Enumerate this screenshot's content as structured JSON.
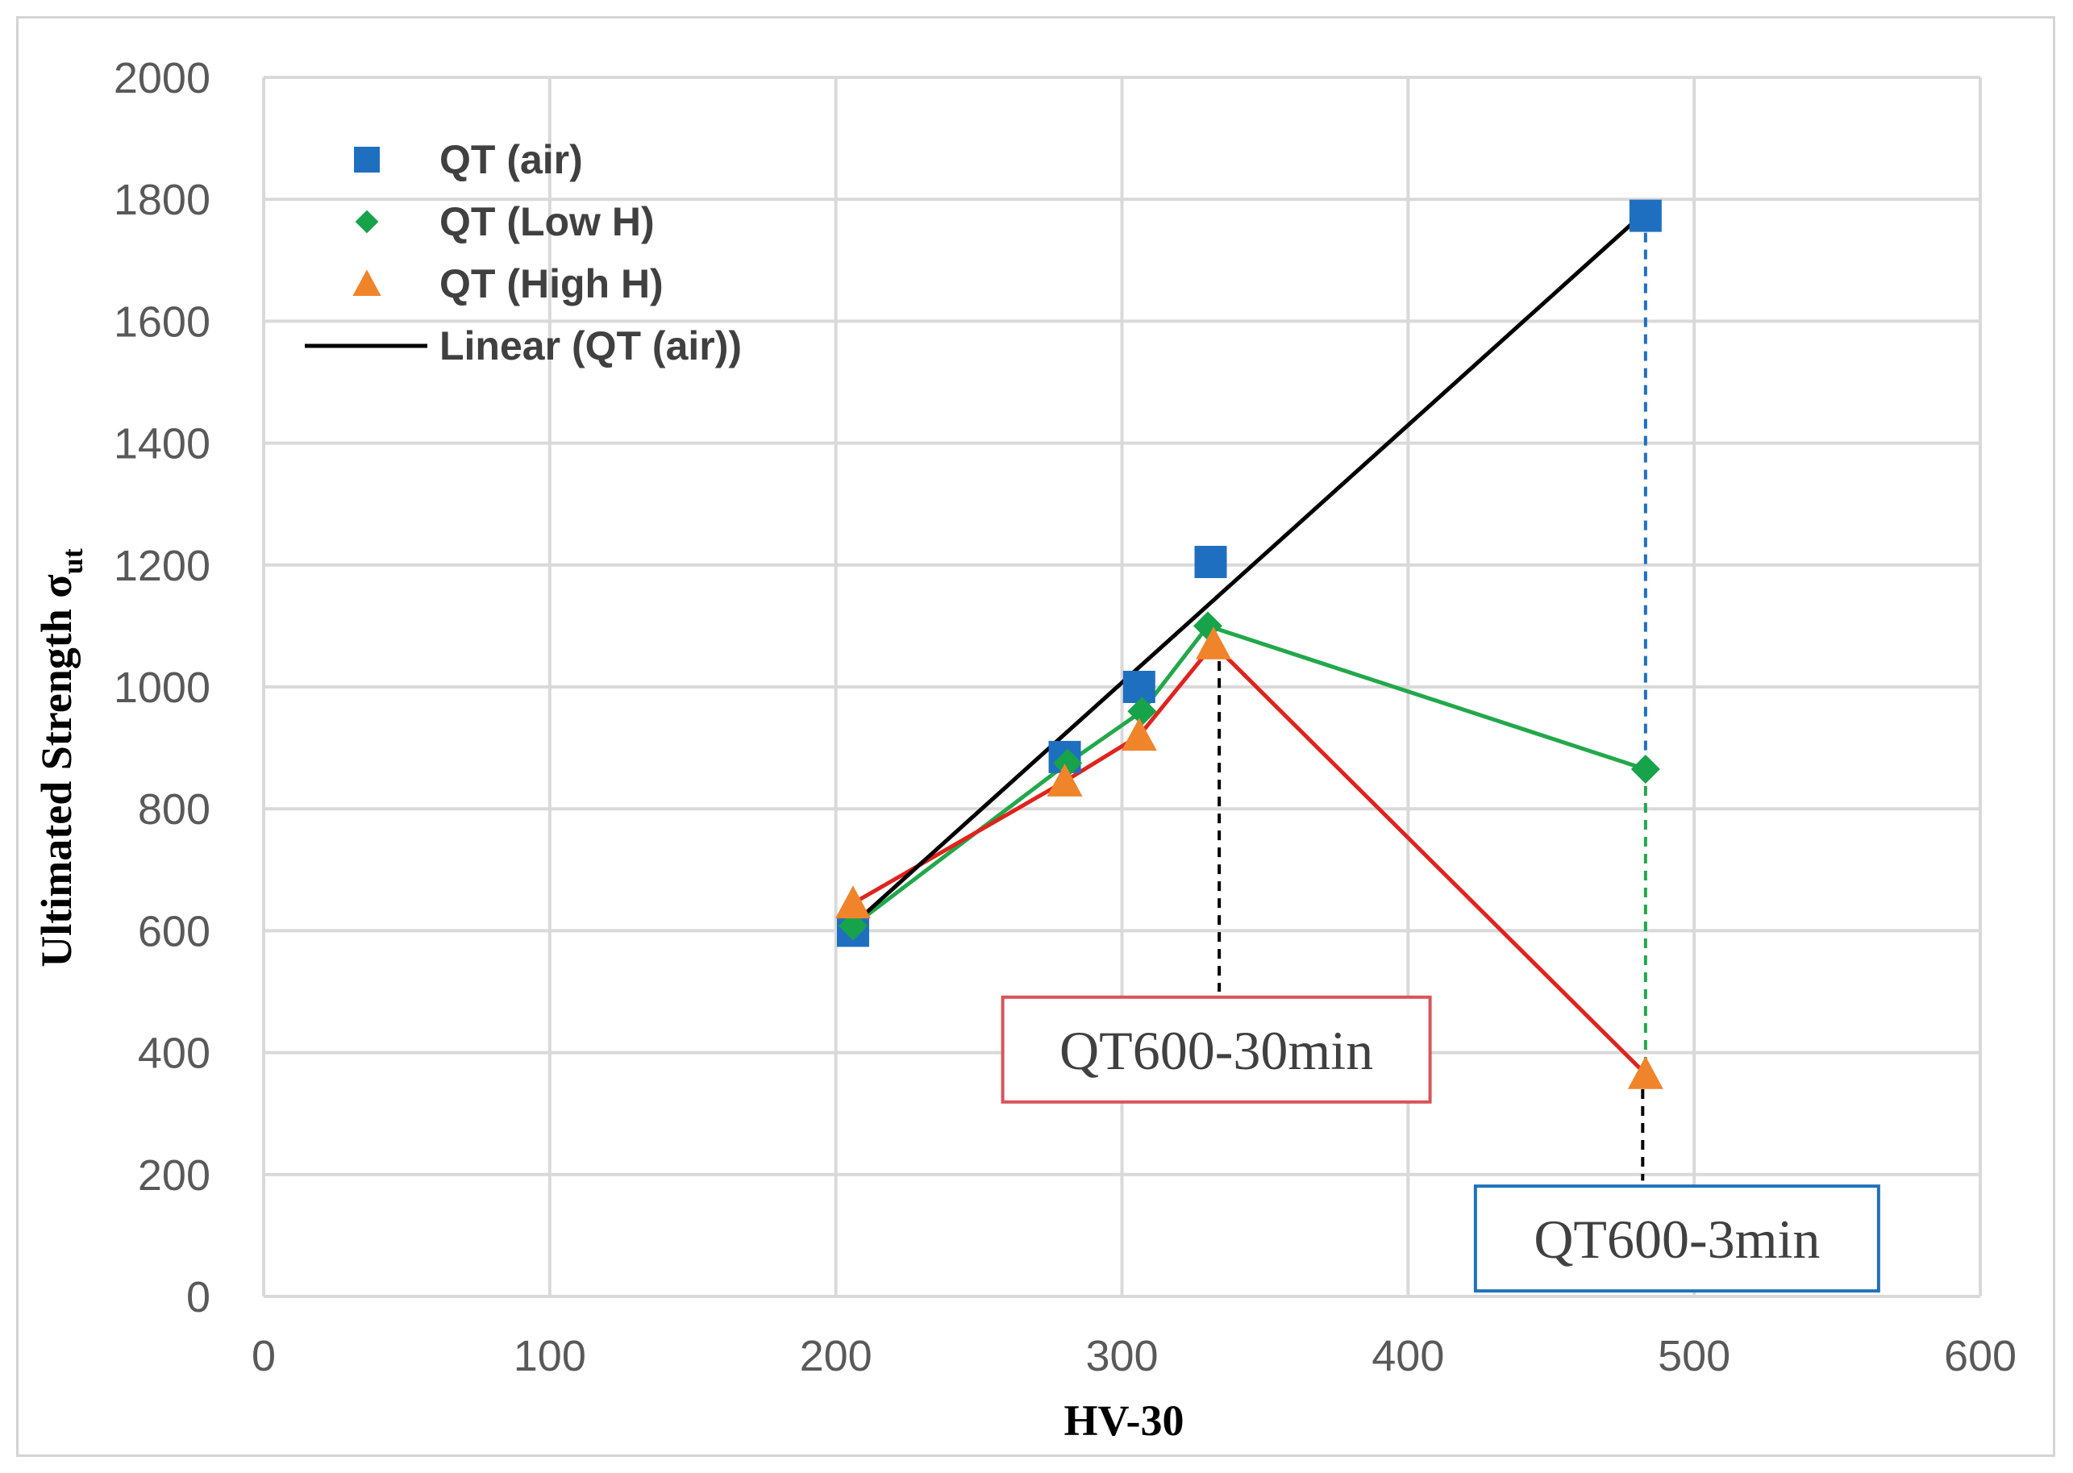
{
  "chart_data": {
    "type": "scatter",
    "title": "",
    "xlabel": "HV-30",
    "ylabel_main": "Ultimated Strength σ",
    "ylabel_sub": "ut",
    "xlim": [
      0,
      600
    ],
    "ylim": [
      0,
      2000
    ],
    "x_ticks": [
      0,
      100,
      200,
      300,
      400,
      500,
      600
    ],
    "y_ticks": [
      0,
      200,
      400,
      600,
      800,
      1000,
      1200,
      1400,
      1600,
      1800,
      2000
    ],
    "grid": true,
    "legend_position": "top-left",
    "series": [
      {
        "name": "QT (air)",
        "marker": "square",
        "color": "#1f6fc1",
        "connect": false,
        "points": [
          [
            206,
            600
          ],
          [
            280,
            885
          ],
          [
            306,
            1000
          ],
          [
            331,
            1205
          ],
          [
            483,
            1773
          ]
        ]
      },
      {
        "name": "QT (Low H)",
        "marker": "diamond",
        "color": "#16a34a",
        "connect": true,
        "line_color": "#22a84a",
        "points": [
          [
            206,
            608
          ],
          [
            281,
            875
          ],
          [
            307,
            960
          ],
          [
            330,
            1100
          ],
          [
            483,
            865
          ]
        ]
      },
      {
        "name": "QT (High H)",
        "marker": "triangle",
        "color": "#f0842b",
        "connect": true,
        "line_color": "#e0231d",
        "points": [
          [
            206,
            645
          ],
          [
            280,
            845
          ],
          [
            306,
            920
          ],
          [
            332,
            1070
          ],
          [
            483,
            365
          ]
        ]
      }
    ],
    "trendline": {
      "name": "Linear (QT (air))",
      "color": "#000000",
      "from": [
        206,
        610
      ],
      "to": [
        483,
        1780
      ]
    },
    "guides": [
      {
        "x": 483,
        "y_from": 1773,
        "y_to": 865,
        "color": "#1f6fc1",
        "style": "dashed"
      },
      {
        "x": 483,
        "y_from": 865,
        "y_to": 365,
        "color": "#22a84a",
        "style": "dashed"
      },
      {
        "x": 334,
        "y_from": 1070,
        "y_to": 500,
        "color": "#000000",
        "style": "dashed"
      },
      {
        "x": 482,
        "y_from": 340,
        "y_to": 190,
        "color": "#000000",
        "style": "dashed"
      }
    ],
    "annotations": [
      {
        "text": "QT600-30min",
        "center_x": 333,
        "center_y": 405,
        "border_color": "#d9545a"
      },
      {
        "text": "QT600-3min",
        "center_x": 494,
        "center_y": 95,
        "border_color": "#1f72b8"
      }
    ]
  }
}
